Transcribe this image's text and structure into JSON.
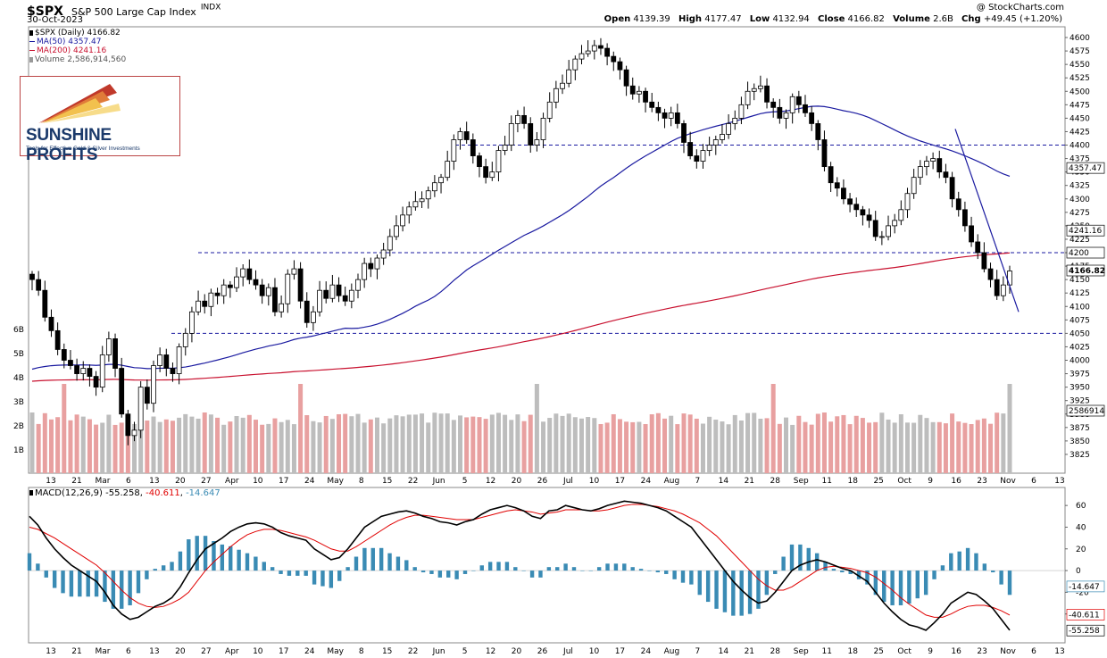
{
  "header": {
    "ticker": "$SPX",
    "description": "S&P 500 Large Cap Index",
    "exchange": "INDX",
    "date": "30-Oct-2023",
    "copyright": "@ StockCharts.com",
    "stats": {
      "open_label": "Open",
      "open": "4139.39",
      "high_label": "High",
      "high": "4177.47",
      "low_label": "Low",
      "low": "4132.94",
      "close_label": "Close",
      "close": "4166.82",
      "volume_label": "Volume",
      "volume": "2.6B",
      "chg_label": "Chg",
      "chg": "+49.45 (+1.20%)"
    }
  },
  "legend": {
    "price": "$SPX (Daily) 4166.82",
    "ma50": "MA(50) 4357.47",
    "ma200": "MA(200) 4241.16",
    "volume": "Volume 2,586,914,560"
  },
  "logo": {
    "name": "SUNSHINE PROFITS",
    "tagline": "Tools for Effective Gold & Silver Investments"
  },
  "colors": {
    "up": "#ffffff",
    "down": "#000000",
    "ma50": "#1a1aa0",
    "ma200": "#c8102e",
    "vol_up": "#bdbdbd",
    "vol_down": "#e8a0a0",
    "hist": "#3a8bb4",
    "signal": "#e00000",
    "macd": "#000000"
  },
  "chart_data": [
    {
      "type": "candlestick",
      "title": "$SPX (Daily)",
      "ylim": [
        3800,
        4610
      ],
      "y_ticks": [
        "4600",
        "4575",
        "4550",
        "4525",
        "4500",
        "4475",
        "4450",
        "4425",
        "4400",
        "4375",
        "4350",
        "4325",
        "4300",
        "4275",
        "4250",
        "4225",
        "4200",
        "4175",
        "4150",
        "4125",
        "4100",
        "4075",
        "4050",
        "4025",
        "4000",
        "3975",
        "3950",
        "3925",
        "3900",
        "3875",
        "3850",
        "3825"
      ],
      "x_ticks": [
        "13",
        "21",
        "Mar",
        "6",
        "13",
        "20",
        "27",
        "Apr",
        "10",
        "17",
        "24",
        "May",
        "8",
        "15",
        "22",
        "Jun",
        "5",
        "12",
        "20",
        "26",
        "Jul",
        "10",
        "17",
        "24",
        "Aug",
        "7",
        "14",
        "21",
        "28",
        "Sep",
        "11",
        "18",
        "25",
        "Oct",
        "9",
        "16",
        "23",
        "Nov",
        "6",
        "13"
      ],
      "last_value_labels": [
        "4357.47",
        "4241.16",
        "4200",
        "4166.82",
        "2586914"
      ],
      "horizontal_levels": [
        4400,
        4200,
        4050
      ],
      "trend_line": {
        "from": [
          "2023-10-12",
          4430
        ],
        "to": [
          "2023-11-01",
          4090
        ]
      },
      "volume_ticks": [
        "6B",
        "5B",
        "4B",
        "3B",
        "2B",
        "1B"
      ],
      "closes": [
        4150,
        4130,
        4080,
        4055,
        4020,
        4000,
        3990,
        3975,
        3985,
        3970,
        3950,
        4010,
        4040,
        3985,
        3900,
        3860,
        3870,
        3950,
        3920,
        3990,
        4010,
        3985,
        3975,
        4025,
        4050,
        4090,
        4110,
        4100,
        4125,
        4120,
        4140,
        4135,
        4155,
        4170,
        4150,
        4140,
        4120,
        4135,
        4090,
        4105,
        4160,
        4170,
        4110,
        4070,
        4090,
        4130,
        4115,
        4140,
        4120,
        4110,
        4130,
        4150,
        4180,
        4170,
        4190,
        4205,
        4230,
        4250,
        4270,
        4285,
        4295,
        4300,
        4315,
        4330,
        4340,
        4370,
        4410,
        4425,
        4410,
        4380,
        4360,
        4340,
        4350,
        4390,
        4400,
        4440,
        4455,
        4440,
        4400,
        4410,
        4450,
        4480,
        4505,
        4515,
        4540,
        4560,
        4570,
        4575,
        4585,
        4580,
        4565,
        4555,
        4540,
        4510,
        4495,
        4500,
        4480,
        4470,
        4460,
        4450,
        4460,
        4440,
        4405,
        4380,
        4370,
        4390,
        4400,
        4410,
        4420,
        4440,
        4450,
        4475,
        4500,
        4505,
        4510,
        4480,
        4470,
        4450,
        4460,
        4490,
        4475,
        4460,
        4440,
        4410,
        4360,
        4330,
        4320,
        4300,
        4290,
        4280,
        4270,
        4260,
        4230,
        4230,
        4250,
        4260,
        4280,
        4310,
        4340,
        4360,
        4370,
        4375,
        4350,
        4340,
        4300,
        4280,
        4250,
        4220,
        4200,
        4170,
        4150,
        4120,
        4140,
        4166
      ]
    },
    {
      "type": "line",
      "title": "MACD(12,26,9)",
      "series": [
        {
          "name": "MACD(12,26,9)",
          "last": "-55.258"
        },
        {
          "name": "Signal",
          "last": "-40.611"
        },
        {
          "name": "Histogram",
          "last": "-14.647"
        }
      ],
      "ylim": [
        -60,
        70
      ],
      "y_ticks": [
        "60",
        "40",
        "20",
        "0",
        "-20",
        "-40"
      ],
      "macd": [
        50,
        42,
        30,
        20,
        12,
        5,
        0,
        -5,
        -10,
        -20,
        -32,
        -40,
        -45,
        -43,
        -38,
        -33,
        -30,
        -25,
        -15,
        -2,
        10,
        20,
        25,
        30,
        36,
        40,
        43,
        44,
        43,
        40,
        35,
        32,
        30,
        28,
        20,
        15,
        10,
        12,
        20,
        30,
        40,
        45,
        50,
        52,
        54,
        55,
        53,
        50,
        48,
        45,
        44,
        42,
        45,
        47,
        52,
        56,
        58,
        60,
        58,
        55,
        50,
        48,
        55,
        56,
        60,
        58,
        56,
        55,
        57,
        60,
        62,
        64,
        63,
        62,
        60,
        58,
        55,
        50,
        45,
        40,
        30,
        20,
        10,
        0,
        -10,
        -18,
        -25,
        -30,
        -28,
        -20,
        -10,
        0,
        5,
        8,
        10,
        8,
        5,
        2,
        0,
        -5,
        -10,
        -20,
        -30,
        -38,
        -45,
        -50,
        -52,
        -55,
        -48,
        -40,
        -30,
        -25,
        -20,
        -22,
        -28,
        -35,
        -45,
        -55
      ],
      "signal": [
        40,
        38,
        34,
        30,
        25,
        20,
        15,
        10,
        5,
        -2,
        -10,
        -18,
        -25,
        -30,
        -33,
        -34,
        -33,
        -30,
        -26,
        -20,
        -10,
        0,
        8,
        15,
        22,
        28,
        33,
        36,
        38,
        38,
        37,
        35,
        33,
        31,
        28,
        24,
        20,
        18,
        18,
        22,
        27,
        32,
        37,
        42,
        46,
        49,
        51,
        51,
        50,
        49,
        48,
        47,
        47,
        47,
        49,
        51,
        53,
        55,
        56,
        55,
        54,
        52,
        53,
        54,
        56,
        56,
        56,
        55,
        55,
        56,
        58,
        60,
        61,
        61,
        60,
        59,
        57,
        55,
        52,
        48,
        44,
        38,
        32,
        24,
        16,
        8,
        0,
        -8,
        -14,
        -18,
        -18,
        -15,
        -10,
        -5,
        0,
        3,
        4,
        3,
        2,
        0,
        -2,
        -6,
        -12,
        -18,
        -25,
        -31,
        -36,
        -41,
        -43,
        -43,
        -40,
        -36,
        -33,
        -32,
        -32,
        -34,
        -37,
        -41
      ]
    }
  ]
}
